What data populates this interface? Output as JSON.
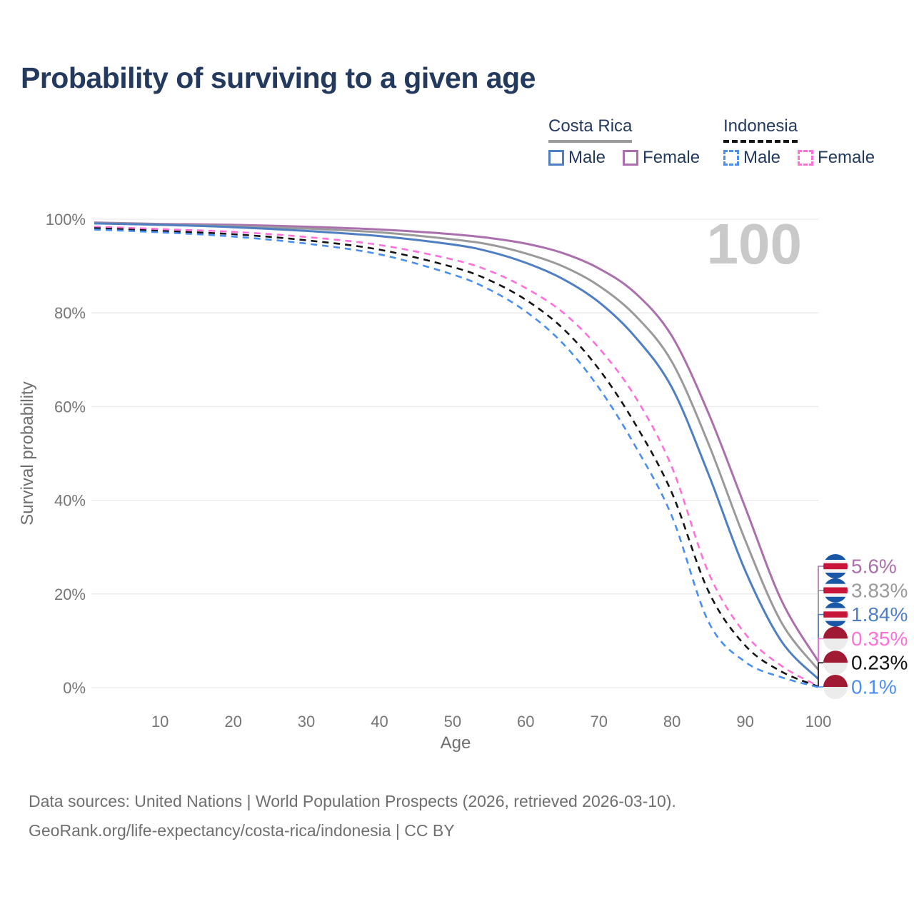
{
  "title": "Probability of surviving to a given age",
  "watermark": "100",
  "legend": {
    "groups": [
      {
        "id": "costa-rica",
        "label": "Costa Rica",
        "male_label": "Male",
        "female_label": "Female",
        "underline_style": "solid",
        "underline_color": "#9a9a9a",
        "male_color": "#4f7fc2",
        "female_color": "#ab6fad",
        "swatch_style": "solid"
      },
      {
        "id": "indonesia",
        "label": "Indonesia",
        "male_label": "Male",
        "female_label": "Female",
        "underline_style": "dashed",
        "underline_color": "#141414",
        "male_color": "#4a8ef0",
        "female_color": "#ff70d9",
        "swatch_style": "dashed"
      }
    ]
  },
  "chart_data": {
    "type": "line",
    "title": "Probability of surviving to a given age",
    "xlabel": "Age",
    "ylabel": "Survival probability",
    "xlim": [
      1,
      100
    ],
    "ylim": [
      0,
      100
    ],
    "grid": "horizontal",
    "x_ticks": [
      10,
      20,
      30,
      40,
      50,
      60,
      70,
      80,
      90,
      100
    ],
    "x_tick_labels": [
      "10",
      "20",
      "30",
      "40",
      "50",
      "60",
      "70",
      "80",
      "90",
      "100"
    ],
    "y_ticks": [
      0,
      20,
      40,
      60,
      80,
      100
    ],
    "y_tick_labels": [
      "0%",
      "20%",
      "40%",
      "60%",
      "80%",
      "100%"
    ],
    "hover_age": "100",
    "x": [
      1,
      10,
      20,
      30,
      40,
      50,
      55,
      60,
      65,
      70,
      75,
      80,
      85,
      90,
      95,
      100
    ],
    "series": [
      {
        "name": "Costa Rica Female",
        "country": "Costa Rica",
        "sex": "Female",
        "color": "#ab6fad",
        "dash": "solid",
        "flag": "costa-rica",
        "end_label": "5.6%",
        "values": [
          99.3,
          99.0,
          98.8,
          98.4,
          97.8,
          96.8,
          96.0,
          94.8,
          92.8,
          89.5,
          84.2,
          75.0,
          58.5,
          38.5,
          18.5,
          5.6
        ]
      },
      {
        "name": "Costa Rica (both sexes)",
        "country": "Costa Rica",
        "sex": "Both",
        "color": "#9a9a9a",
        "dash": "solid",
        "flag": "costa-rica",
        "end_label": "3.83%",
        "values": [
          99.2,
          98.9,
          98.5,
          98.0,
          97.2,
          95.7,
          94.6,
          92.7,
          90.0,
          85.8,
          79.4,
          69.5,
          52.0,
          31.5,
          13.8,
          3.83
        ]
      },
      {
        "name": "Costa Rica Male",
        "country": "Costa Rica",
        "sex": "Male",
        "color": "#4f7fc2",
        "dash": "solid",
        "flag": "costa-rica",
        "end_label": "1.84%",
        "values": [
          99.1,
          98.8,
          98.3,
          97.5,
          96.4,
          94.6,
          93.1,
          90.7,
          87.3,
          82.3,
          74.8,
          64.0,
          45.5,
          25.0,
          9.8,
          1.84
        ]
      },
      {
        "name": "Indonesia Female",
        "country": "Indonesia",
        "sex": "Female",
        "color": "#ff70d9",
        "dash": "dashed",
        "flag": "indonesia",
        "end_label": "0.35%",
        "values": [
          98.4,
          97.9,
          97.3,
          96.2,
          94.5,
          91.4,
          89.0,
          85.3,
          80.2,
          72.5,
          62.0,
          47.0,
          24.5,
          11.5,
          4.6,
          0.35
        ]
      },
      {
        "name": "Indonesia (both sexes)",
        "country": "Indonesia",
        "sex": "Both",
        "color": "#141414",
        "dash": "dashed",
        "flag": "indonesia",
        "end_label": "0.23%",
        "values": [
          98.1,
          97.5,
          96.8,
          95.5,
          93.5,
          89.8,
          87.0,
          82.8,
          76.8,
          68.0,
          56.2,
          41.5,
          20.5,
          9.0,
          3.4,
          0.23
        ]
      },
      {
        "name": "Indonesia Male",
        "country": "Indonesia",
        "sex": "Male",
        "color": "#4a8ef0",
        "dash": "dashed",
        "flag": "indonesia",
        "end_label": "0.1%",
        "values": [
          97.8,
          97.2,
          96.3,
          94.8,
          92.5,
          88.2,
          85.0,
          80.3,
          73.6,
          64.0,
          51.5,
          36.5,
          14.0,
          5.5,
          2.2,
          0.1
        ]
      }
    ],
    "flag_colors": {
      "costa_rica_blue": "#1857a6",
      "costa_rica_red": "#c8163a",
      "costa_rica_white": "#f4f4f4",
      "indonesia_red": "#a01a33",
      "indonesia_white": "#ececec"
    }
  },
  "footer": {
    "line1": "Data sources: United Nations | World Population Prospects (2026, retrieved 2026-03-10).",
    "line2": "GeoRank.org/life-expectancy/costa-rica/indonesia | CC BY"
  }
}
